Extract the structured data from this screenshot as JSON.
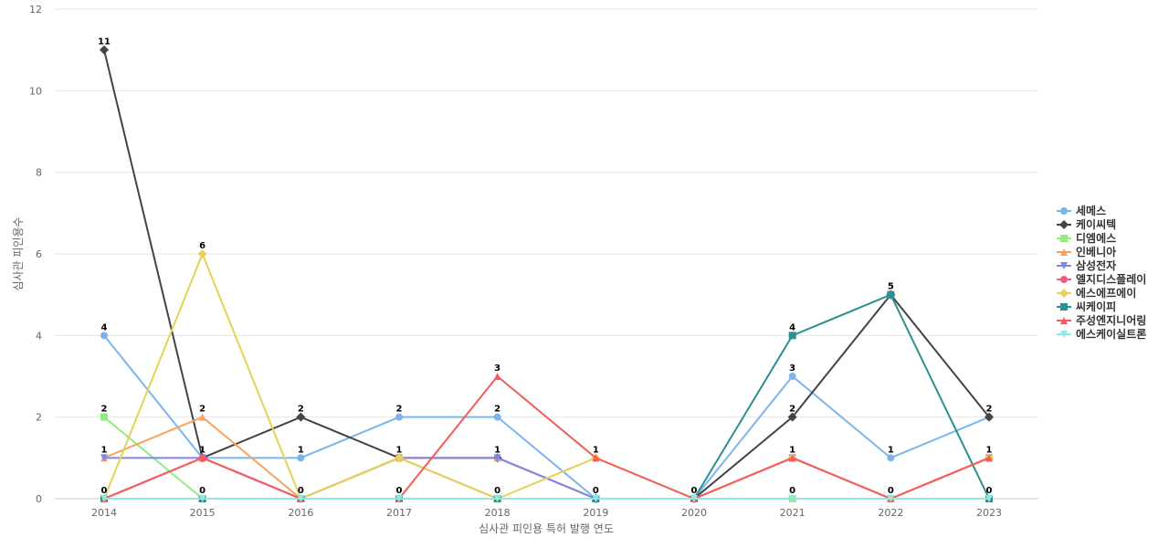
{
  "chart_data": {
    "type": "line",
    "title": "",
    "xlabel": "심사관 피인용 특허 발행 연도",
    "ylabel": "심사관 피인용수",
    "ylim": [
      0,
      12
    ],
    "yticks": [
      0,
      2,
      4,
      6,
      8,
      10,
      12
    ],
    "grid": true,
    "legend_position": "right",
    "categories": [
      "2014",
      "2015",
      "2016",
      "2017",
      "2018",
      "2019",
      "2020",
      "2021",
      "2022",
      "2023"
    ],
    "series": [
      {
        "name": "세메스",
        "color": "#7cb5ec",
        "marker": "circle",
        "values": [
          4,
          1,
          1,
          2,
          2,
          0,
          0,
          3,
          1,
          2
        ]
      },
      {
        "name": "케이씨텍",
        "color": "#434348",
        "marker": "diamond",
        "values": [
          11,
          1,
          2,
          1,
          1,
          0,
          0,
          2,
          5,
          2
        ]
      },
      {
        "name": "디엠에스",
        "color": "#90ed7d",
        "marker": "square",
        "values": [
          2,
          0,
          0,
          0,
          0,
          0,
          0,
          0,
          0,
          0
        ]
      },
      {
        "name": "인베니아",
        "color": "#f7a35c",
        "marker": "triangle",
        "values": [
          1,
          2,
          0,
          1,
          1,
          0,
          0,
          1,
          0,
          1
        ]
      },
      {
        "name": "삼성전자",
        "color": "#8085e9",
        "marker": "triangle-down",
        "values": [
          1,
          1,
          0,
          1,
          1,
          0,
          0,
          1,
          0,
          1
        ]
      },
      {
        "name": "엘지디스플레이",
        "color": "#f15c80",
        "marker": "circle",
        "values": [
          0,
          1,
          0,
          1,
          0,
          0,
          0,
          1,
          0,
          1
        ]
      },
      {
        "name": "에스에프에이",
        "color": "#e4d354",
        "marker": "diamond",
        "values": [
          0,
          6,
          0,
          1,
          0,
          1,
          0,
          1,
          0,
          1
        ]
      },
      {
        "name": "씨케이피",
        "color": "#2b908f",
        "marker": "square",
        "values": [
          0,
          0,
          0,
          0,
          0,
          0,
          0,
          4,
          5,
          0
        ]
      },
      {
        "name": "주성엔지니어링",
        "color": "#f45b5b",
        "marker": "triangle",
        "values": [
          0,
          1,
          0,
          0,
          3,
          1,
          0,
          1,
          0,
          1
        ]
      },
      {
        "name": "에스케이실트론",
        "color": "#91e8e1",
        "marker": "triangle-down",
        "values": [
          0,
          0,
          0,
          0,
          0,
          0,
          0,
          0,
          0,
          0
        ]
      }
    ],
    "data_labels": [
      {
        "x": "2014",
        "values": [
          11,
          4,
          2,
          1,
          0
        ]
      },
      {
        "x": "2015",
        "values": [
          6,
          2,
          1,
          0
        ]
      },
      {
        "x": "2016",
        "values": [
          2,
          1,
          0
        ]
      },
      {
        "x": "2017",
        "values": [
          2,
          1,
          0
        ]
      },
      {
        "x": "2018",
        "values": [
          3,
          2,
          1,
          0
        ]
      },
      {
        "x": "2019",
        "values": [
          1,
          0
        ]
      },
      {
        "x": "2020",
        "values": [
          0
        ]
      },
      {
        "x": "2021",
        "values": [
          4,
          3,
          2,
          1,
          0
        ]
      },
      {
        "x": "2022",
        "values": [
          5,
          1,
          0
        ]
      },
      {
        "x": "2023",
        "values": [
          2,
          1,
          0
        ]
      }
    ]
  }
}
